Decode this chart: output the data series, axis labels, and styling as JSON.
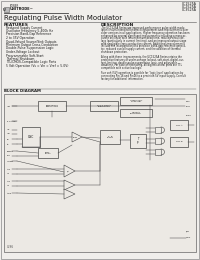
{
  "page_bg": "#e8e8e8",
  "content_bg": "#f0eeeb",
  "title": "Regulating Pulse Width Modulator",
  "part_numbers": [
    "UC1525A",
    "UC2525A",
    "UC3525A"
  ],
  "logo_text": "UNITRODE",
  "features_header": "FEATURES",
  "features": [
    "Reduced Supply Current",
    "Oscillator Frequency 5-400k Hz",
    "Precision Band-Gap Reference",
    "2 to 35V Operation",
    "Quad-Valued Source/Sink Outputs",
    "Minimum Output Cross-Conduction",
    "Double-Pulse Suppression Logic",
    "Under-Voltage Lockout",
    "Programmable Soft-Start",
    "Thermal Shutdown",
    "TTL/CMOS-Compatible Logic Ports",
    "5 Volt Operation (Vs = Vin = Vref = 5.0V)"
  ],
  "description_header": "DESCRIPTION",
  "desc_lines": [
    "The UC1525A Series are improved-performance pulse-width modu-",
    "lator circuits intended for direct replacement and improvements over",
    "older versions in all applications. Higher frequency operation has been",
    "enhanced by several significant improvements including a more ac-",
    "curate oscillator with less minimum dead time, reduced circuit de-",
    "lays (particularly in current limiting), and an improved output stage",
    "with negligible cross-conduction current. Additional improvements",
    "include the incorporation of a precision band-gap reference genera-",
    "tor, reduced overall supply current, and the addition of thermal",
    "shutdown protection.",
    "",
    "Along with these improvements, the UC1525A Series retains the",
    "protective features of under-voltage lockout, soft-start, digital-cur-",
    "rent limiting, double-pulse suppression logic, and adjustable",
    "deadtime. For ease of interfacing, all digital control ports are TTL",
    "compatible with active low logic.",
    "",
    "Five volt (5V) operation is possible for 'logic-level' applications by",
    "connecting Pin 16 and Pin16 to a precision 5V input supply. Consult",
    "factory for additional information."
  ],
  "block_diagram_label": "BLOCK DIAGRAM",
  "footer_text": "U-96",
  "text_color": "#1a1a1a",
  "line_color": "#555555",
  "box_color": "#333333"
}
